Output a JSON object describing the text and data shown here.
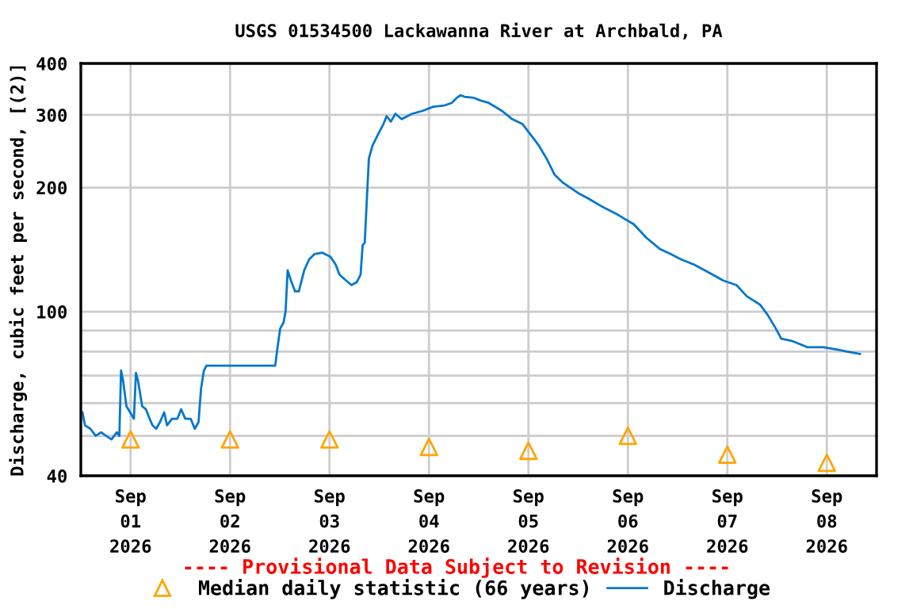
{
  "chart_data": {
    "type": "line",
    "title": "USGS 01534500 Lackawanna River at Archbald, PA",
    "ylabel": "Discharge, cubic feet per second, [(2)]",
    "annotations": [
      "---- Provisional Data Subject to Revision ----"
    ],
    "log": "y",
    "grid": true,
    "legend": "bottom",
    "xlim": [
      "2026-08-31T12:00",
      "2026-09-08T12:00"
    ],
    "xticks": [
      {
        "value": "2026-09-01",
        "label": "Sep\n01\n2026"
      },
      {
        "value": "2026-09-02",
        "label": "Sep\n02\n2026"
      },
      {
        "value": "2026-09-03",
        "label": "Sep\n03\n2026"
      },
      {
        "value": "2026-09-04",
        "label": "Sep\n04\n2026"
      },
      {
        "value": "2026-09-05",
        "label": "Sep\n05\n2026"
      },
      {
        "value": "2026-09-06",
        "label": "Sep\n06\n2026"
      },
      {
        "value": "2026-09-07",
        "label": "Sep\n07\n2026"
      },
      {
        "value": "2026-09-08",
        "label": "Sep\n08\n2026"
      }
    ],
    "ylim": [
      40,
      400
    ],
    "yticks": [
      40,
      {
        "value": 50,
        "label": null
      },
      {
        "value": 60,
        "label": null
      },
      {
        "value": 70,
        "label": null
      },
      {
        "value": 80,
        "label": null
      },
      {
        "value": 90,
        "label": null
      },
      100,
      200,
      300,
      400
    ],
    "series": [
      {
        "name": "Median daily statistic (66 years)",
        "type": "scatter",
        "marker": "triangle",
        "color": "#ffa500",
        "x": [
          "2026-09-01",
          "2026-09-02",
          "2026-09-03",
          "2026-09-04",
          "2026-09-05",
          "2026-09-06",
          "2026-09-07",
          "2026-09-08"
        ],
        "values": [
          49,
          49,
          49,
          47,
          46,
          50,
          45,
          43
        ]
      },
      {
        "name": "Discharge",
        "color": "#0077cc",
        "x": [
          "2026-08-31T12:24",
          "2026-08-31T13:00",
          "2026-08-31T14:18",
          "2026-08-31T15:36",
          "2026-08-31T16:54",
          "2026-08-31T18:06",
          "2026-08-31T19:24",
          "2026-08-31T20:42",
          "2026-08-31T21:18",
          "2026-08-31T21:42",
          "2026-08-31T22:12",
          "2026-08-31T23:00",
          "2026-08-31T23:54",
          "2026-09-01T00:48",
          "2026-09-01T01:18",
          "2026-09-01T01:48",
          "2026-09-01T02:48",
          "2026-09-01T03:42",
          "2026-09-01T04:36",
          "2026-09-01T05:18",
          "2026-09-01T06:12",
          "2026-09-01T07:06",
          "2026-09-01T08:06",
          "2026-09-01T08:48",
          "2026-09-01T10:00",
          "2026-09-01T11:18",
          "2026-09-01T12:12",
          "2026-09-01T13:12",
          "2026-09-01T14:30",
          "2026-09-01T15:30",
          "2026-09-01T16:24",
          "2026-09-01T17:00",
          "2026-09-01T17:42",
          "2026-09-01T18:18",
          "2026-09-01T20:54",
          "2026-09-01T23:24",
          "2026-09-02T02:00",
          "2026-09-02T04:30",
          "2026-09-02T08:18",
          "2026-09-02T10:54",
          "2026-09-02T11:24",
          "2026-09-02T12:06",
          "2026-09-02T12:54",
          "2026-09-02T13:24",
          "2026-09-02T13:54",
          "2026-09-02T14:42",
          "2026-09-02T15:42",
          "2026-09-02T16:36",
          "2026-09-02T17:54",
          "2026-09-02T19:06",
          "2026-09-02T20:24",
          "2026-09-02T22:18",
          "2026-09-03T00:12",
          "2026-09-03T01:30",
          "2026-09-03T02:24",
          "2026-09-03T04:00",
          "2026-09-03T05:18",
          "2026-09-03T06:36",
          "2026-09-03T07:30",
          "2026-09-03T08:00",
          "2026-09-03T08:30",
          "2026-09-03T09:00",
          "2026-09-03T09:30",
          "2026-09-03T10:24",
          "2026-09-03T11:42",
          "2026-09-03T13:00",
          "2026-09-03T13:48",
          "2026-09-03T14:48",
          "2026-09-03T15:54",
          "2026-09-03T17:24",
          "2026-09-03T19:54",
          "2026-09-03T22:30",
          "2026-09-04T01:00",
          "2026-09-04T03:36",
          "2026-09-04T05:30",
          "2026-09-04T06:42",
          "2026-09-04T07:36",
          "2026-09-04T08:36",
          "2026-09-04T10:54",
          "2026-09-04T12:30",
          "2026-09-04T14:24",
          "2026-09-04T17:36",
          "2026-09-04T20:06",
          "2026-09-04T22:36",
          "2026-09-05T00:30",
          "2026-09-05T02:30",
          "2026-09-05T04:24",
          "2026-09-05T06:18",
          "2026-09-05T08:12",
          "2026-09-05T10:06",
          "2026-09-05T12:00",
          "2026-09-05T14:30",
          "2026-09-05T17:42",
          "2026-09-05T21:30",
          "2026-09-06T01:24",
          "2026-09-06T04:30",
          "2026-09-06T07:42",
          "2026-09-06T10:18",
          "2026-09-06T12:48",
          "2026-09-06T16:00",
          "2026-09-06T19:12",
          "2026-09-06T23:00",
          "2026-09-07T02:12",
          "2026-09-07T04:42",
          "2026-09-07T07:54",
          "2026-09-07T09:48",
          "2026-09-07T11:42",
          "2026-09-07T13:00",
          "2026-09-07T15:30",
          "2026-09-07T19:18",
          "2026-09-07T23:06",
          "2026-09-08T02:18",
          "2026-09-08T04:54",
          "2026-09-08T08:00"
        ],
        "values": [
          57,
          53,
          52,
          50,
          51,
          50,
          49,
          51,
          50,
          72,
          68,
          59,
          57,
          55,
          71,
          68,
          59,
          58,
          55,
          53,
          52,
          54,
          57,
          53,
          55,
          55,
          58,
          55,
          55,
          52,
          54,
          65,
          72,
          74,
          74,
          74,
          74,
          74,
          74,
          74,
          81,
          91,
          94,
          100,
          126,
          119,
          112,
          112,
          126,
          134,
          138,
          139,
          136,
          130,
          123,
          119,
          116,
          118,
          123,
          145,
          147,
          186,
          235,
          253,
          269,
          285,
          298,
          289,
          302,
          293,
          302,
          307,
          314,
          316,
          321,
          330,
          335,
          332,
          330,
          325,
          321,
          307,
          293,
          285,
          269,
          253,
          235,
          215,
          206,
          200,
          194,
          188,
          180,
          172,
          163,
          151,
          142,
          138,
          134,
          130,
          125,
          119,
          116,
          109,
          104,
          98,
          91,
          86,
          85,
          82,
          82,
          81,
          80,
          79
        ]
      }
    ]
  }
}
